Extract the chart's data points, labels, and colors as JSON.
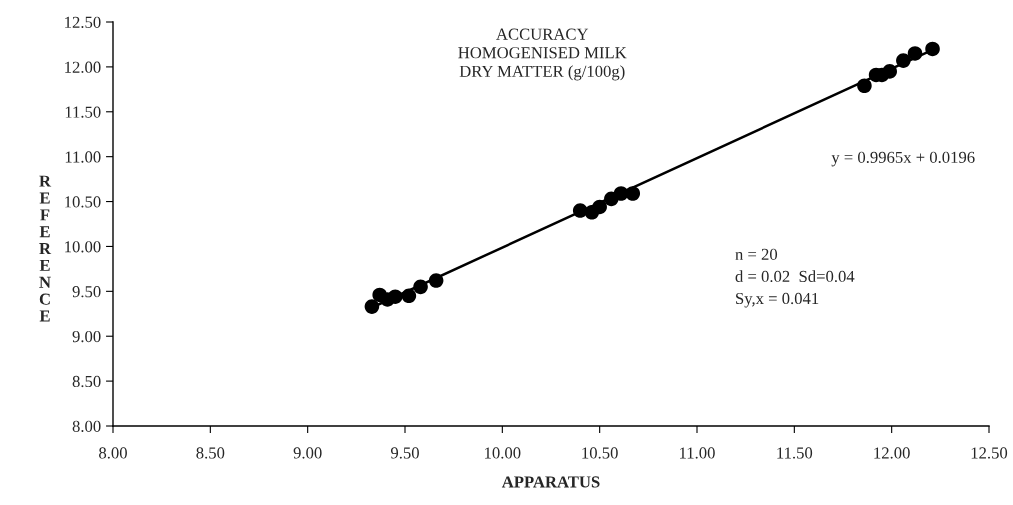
{
  "chart_data": {
    "type": "scatter",
    "title": "ACCURACY\nHOMOGENISED MILK\nDRY MATTER (g/100g)",
    "xlabel": "APPARATUS",
    "ylabel": "REFERENCE",
    "xlim": [
      8,
      12.5
    ],
    "ylim": [
      8,
      12.5
    ],
    "xticks": [
      {
        "value": 8,
        "label": "8.00"
      },
      {
        "value": 8.5,
        "label": "8.50"
      },
      {
        "value": 9,
        "label": "9.00"
      },
      {
        "value": 9.5,
        "label": "9.50"
      },
      {
        "value": 10,
        "label": "10.00"
      },
      {
        "value": 10.5,
        "label": "10.50"
      },
      {
        "value": 11,
        "label": "11.00"
      },
      {
        "value": 11.5,
        "label": "11.50"
      },
      {
        "value": 12,
        "label": "12.00"
      },
      {
        "value": 12.5,
        "label": "12.50"
      }
    ],
    "yticks": [
      {
        "value": 8,
        "label": "8.00"
      },
      {
        "value": 8.5,
        "label": "8.50"
      },
      {
        "value": 9,
        "label": "9.00"
      },
      {
        "value": 9.5,
        "label": "9.50"
      },
      {
        "value": 10,
        "label": "10.00"
      },
      {
        "value": 10.5,
        "label": "10.50"
      },
      {
        "value": 11,
        "label": "11.00"
      },
      {
        "value": 11.5,
        "label": "11.50"
      },
      {
        "value": 12,
        "label": "12.00"
      },
      {
        "value": 12.5,
        "label": "12.50"
      }
    ],
    "series": [
      {
        "color": "#000000",
        "marker": "circle",
        "x": [
          9.33,
          9.37,
          9.41,
          9.45,
          9.52,
          9.58,
          9.66,
          10.4,
          10.46,
          10.5,
          10.56,
          10.61,
          10.67,
          11.86,
          11.92,
          11.95,
          11.99,
          12.06,
          12.12,
          12.21
        ],
        "values": [
          9.33,
          9.46,
          9.41,
          9.44,
          9.45,
          9.55,
          9.62,
          10.4,
          10.38,
          10.44,
          10.53,
          10.59,
          10.59,
          11.79,
          11.91,
          11.91,
          11.95,
          12.07,
          12.15,
          12.2
        ]
      },
      {
        "type": "line",
        "color": "#000000",
        "marker": "none",
        "line_style": "solid",
        "x": [
          9.33,
          12.21
        ],
        "values": [
          9.32,
          12.19
        ]
      }
    ],
    "annotations": [
      "y = 0.9965x + 0.0196",
      "n = 20\nd = 0.02  Sd=0.04\nSy,x = 0.041"
    ],
    "grid": false,
    "legend": false
  }
}
